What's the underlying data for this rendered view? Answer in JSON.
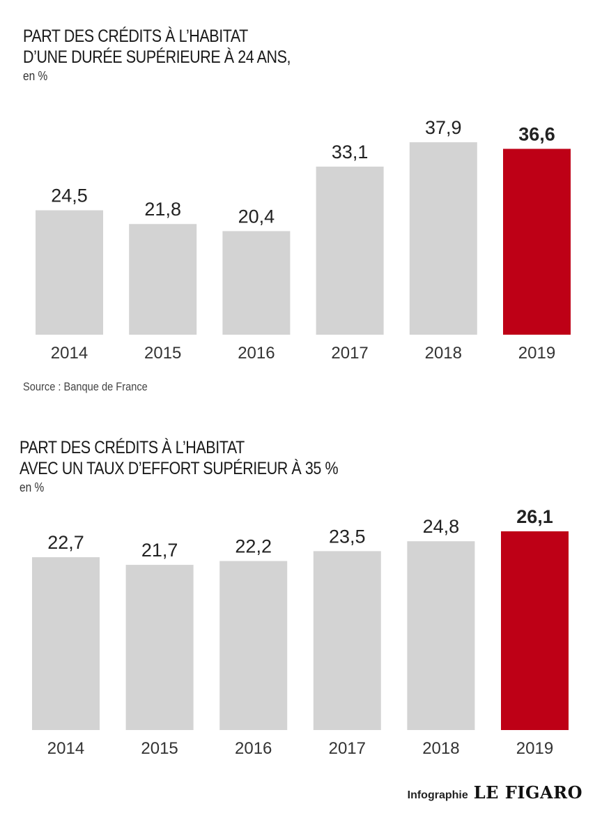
{
  "charts": [
    {
      "title_line1": "PART DES CRÉDITS À L’HABITAT",
      "title_line2": "D’UNE DURÉE SUPÉRIEURE À 24 ANS,",
      "unit": "en %",
      "source": "Source : Banque de France"
    },
    {
      "title_line1": "PART DES CRÉDITS À  L’HABITAT",
      "title_line2": "AVEC UN TAUX D’EFFORT SUPÉRIEUR À 35 %",
      "unit": "en %"
    }
  ],
  "footer": {
    "credit": "Infographie",
    "brand": "LE FIGARO"
  },
  "colors": {
    "bar": "#d3d3d3",
    "highlight": "#be0016",
    "text": "#222222"
  },
  "chart_data": [
    {
      "type": "bar",
      "categories": [
        "2014",
        "2015",
        "2016",
        "2017",
        "2018",
        "2019"
      ],
      "values": [
        24.5,
        21.8,
        20.4,
        33.1,
        37.9,
        36.6
      ],
      "labels": [
        "24,5",
        "21,8",
        "20,4",
        "33,1",
        "37,9",
        "36,6"
      ],
      "highlight_index": 5,
      "title": "PART DES CRÉDITS À L’HABITAT D’UNE DURÉE SUPÉRIEURE À 24 ANS,",
      "ylabel": "en %",
      "ylim": [
        0,
        37.9
      ],
      "grid": false
    },
    {
      "type": "bar",
      "categories": [
        "2014",
        "2015",
        "2016",
        "2017",
        "2018",
        "2019"
      ],
      "values": [
        22.7,
        21.7,
        22.2,
        23.5,
        24.8,
        26.1
      ],
      "labels": [
        "22,7",
        "21,7",
        "22,2",
        "23,5",
        "24,8",
        "26,1"
      ],
      "highlight_index": 5,
      "title": "PART DES CRÉDITS À  L’HABITAT AVEC UN TAUX D’EFFORT SUPÉRIEUR À 35 %",
      "ylabel": "en %",
      "ylim": [
        0,
        26.1
      ],
      "grid": false
    }
  ]
}
